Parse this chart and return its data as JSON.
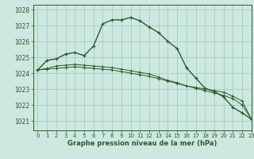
{
  "xlabel": "Graphe pression niveau de la mer (hPa)",
  "background_color": "#cde8e0",
  "grid_color": "#9dc8bc",
  "line_color": "#2d5a2d",
  "xlim": [
    -0.5,
    23
  ],
  "ylim": [
    1020.4,
    1028.3
  ],
  "yticks": [
    1021,
    1022,
    1023,
    1024,
    1025,
    1026,
    1027,
    1028
  ],
  "xticks": [
    0,
    1,
    2,
    3,
    4,
    5,
    6,
    7,
    8,
    9,
    10,
    11,
    12,
    13,
    14,
    15,
    16,
    17,
    18,
    19,
    20,
    21,
    22,
    23
  ],
  "series0": [
    1024.2,
    1024.8,
    1024.9,
    1025.2,
    1025.3,
    1025.1,
    1025.7,
    1027.1,
    1027.35,
    1027.35,
    1027.5,
    1027.3,
    1026.9,
    1026.55,
    1026.0,
    1025.55,
    1024.35,
    1023.7,
    1023.05,
    1022.85,
    1022.5,
    1021.85,
    1021.5,
    1021.1
  ],
  "series1": [
    1024.2,
    1024.25,
    1024.3,
    1024.35,
    1024.4,
    1024.35,
    1024.3,
    1024.25,
    1024.2,
    1024.1,
    1024.0,
    1023.9,
    1023.8,
    1023.65,
    1023.5,
    1023.35,
    1023.2,
    1023.1,
    1023.0,
    1022.9,
    1022.8,
    1022.55,
    1022.25,
    1021.1
  ],
  "series2": [
    1024.2,
    1024.3,
    1024.45,
    1024.5,
    1024.55,
    1024.5,
    1024.45,
    1024.4,
    1024.35,
    1024.25,
    1024.15,
    1024.05,
    1023.95,
    1023.75,
    1023.55,
    1023.4,
    1023.2,
    1023.05,
    1022.9,
    1022.75,
    1022.6,
    1022.4,
    1022.0,
    1021.1
  ]
}
